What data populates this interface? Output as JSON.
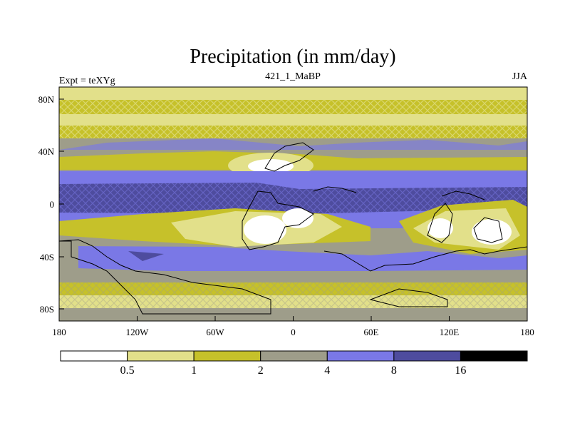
{
  "title": "Precipitation (in mm/day)",
  "left_label": "Expt = teXYg",
  "center_label": "421_1_MaBP",
  "right_label": "JJA",
  "lat_ticks": [
    "80N",
    "40N",
    "0",
    "40S",
    "80S"
  ],
  "lon_ticks": [
    "180",
    "120W",
    "60W",
    "0",
    "60E",
    "120E",
    "180"
  ],
  "colorbar": {
    "thresholds": [
      "0.5",
      "1",
      "2",
      "4",
      "8",
      "16"
    ],
    "colors": [
      "#ffffff",
      "#e2e08a",
      "#c6c12a",
      "#9e9d8a",
      "#7a78e6",
      "#4e4c9e",
      "#000000"
    ]
  }
}
